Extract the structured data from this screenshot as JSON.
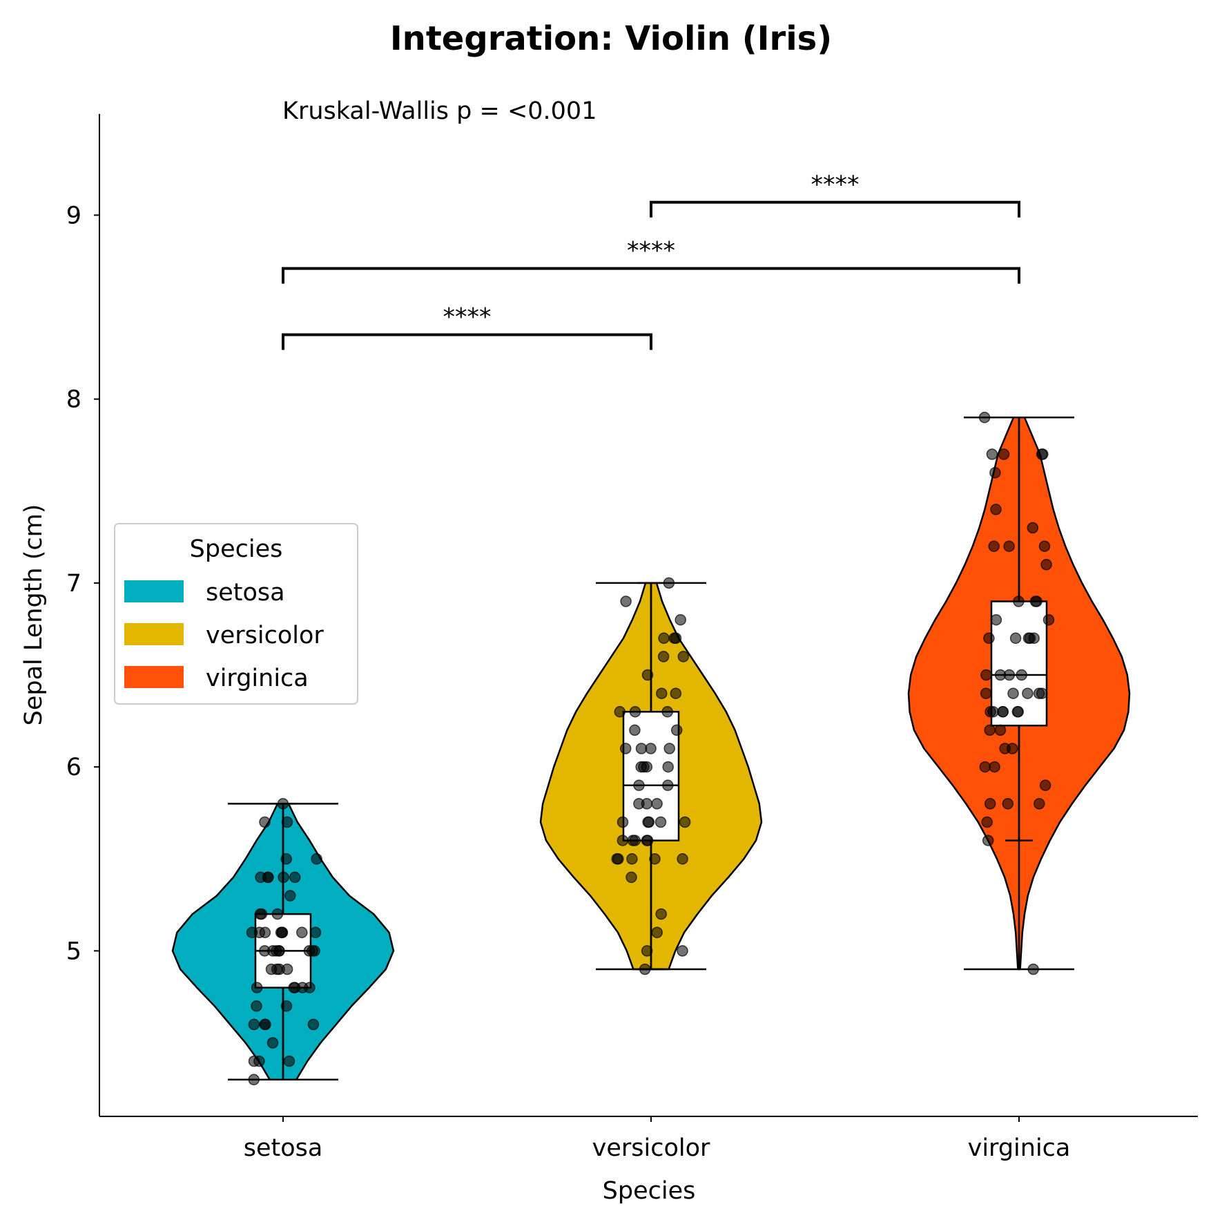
{
  "chart_data": {
    "type": "violin",
    "title": "Integration: Violin (Iris)",
    "xlabel": "Species",
    "ylabel": "Sepal Length (cm)",
    "categories": [
      "setosa",
      "versicolor",
      "virginica"
    ],
    "ylim": [
      4.1,
      9.55
    ],
    "yticks": [
      5,
      6,
      7,
      8,
      9
    ],
    "annotation": "Kruskal-Wallis p = <0.001",
    "legend": {
      "title": "Species",
      "placement": "center-left",
      "entries": [
        "setosa",
        "versicolor",
        "virginica"
      ]
    },
    "colors": {
      "setosa": "#00aebf",
      "versicolor": "#e3b600",
      "virginica": "#ff5208"
    },
    "series": [
      {
        "name": "setosa",
        "min": 4.3,
        "max": 5.8,
        "q1": 4.8,
        "median": 5.0,
        "q3": 5.2,
        "whisker_low": 4.3,
        "whisker_high": 5.8,
        "density": [
          [
            4.3,
            0.12
          ],
          [
            4.4,
            0.22
          ],
          [
            4.5,
            0.34
          ],
          [
            4.6,
            0.48
          ],
          [
            4.7,
            0.62
          ],
          [
            4.8,
            0.78
          ],
          [
            4.9,
            0.93
          ],
          [
            5.0,
            1.0
          ],
          [
            5.1,
            0.96
          ],
          [
            5.2,
            0.82
          ],
          [
            5.3,
            0.6
          ],
          [
            5.4,
            0.45
          ],
          [
            5.5,
            0.34
          ],
          [
            5.6,
            0.24
          ],
          [
            5.7,
            0.13
          ],
          [
            5.8,
            0.05
          ]
        ],
        "points": [
          5.1,
          4.9,
          4.7,
          4.6,
          5.0,
          5.4,
          4.6,
          5.0,
          4.4,
          4.9,
          5.4,
          4.8,
          4.8,
          4.3,
          5.8,
          5.7,
          5.4,
          5.1,
          5.7,
          5.1,
          5.4,
          5.1,
          4.6,
          5.1,
          4.8,
          5.0,
          5.0,
          5.2,
          5.2,
          4.7,
          4.8,
          5.4,
          5.2,
          5.5,
          4.9,
          5.0,
          5.5,
          4.9,
          4.4,
          5.1,
          5.0,
          4.5,
          4.4,
          5.0,
          5.1,
          4.8,
          5.1,
          4.6,
          5.3,
          5.0
        ]
      },
      {
        "name": "versicolor",
        "min": 4.9,
        "max": 7.0,
        "q1": 5.6,
        "median": 5.9,
        "q3": 6.3,
        "whisker_low": 4.9,
        "whisker_high": 7.0,
        "density": [
          [
            4.9,
            0.16
          ],
          [
            5.0,
            0.22
          ],
          [
            5.1,
            0.3
          ],
          [
            5.2,
            0.42
          ],
          [
            5.3,
            0.55
          ],
          [
            5.4,
            0.7
          ],
          [
            5.5,
            0.84
          ],
          [
            5.6,
            0.95
          ],
          [
            5.7,
            1.0
          ],
          [
            5.8,
            0.98
          ],
          [
            5.9,
            0.93
          ],
          [
            6.0,
            0.88
          ],
          [
            6.1,
            0.82
          ],
          [
            6.2,
            0.76
          ],
          [
            6.3,
            0.68
          ],
          [
            6.4,
            0.58
          ],
          [
            6.5,
            0.47
          ],
          [
            6.6,
            0.36
          ],
          [
            6.7,
            0.25
          ],
          [
            6.8,
            0.17
          ],
          [
            6.9,
            0.1
          ],
          [
            7.0,
            0.05
          ]
        ],
        "points": [
          7.0,
          6.4,
          6.9,
          5.5,
          6.5,
          5.7,
          6.3,
          4.9,
          6.6,
          5.2,
          5.0,
          5.9,
          6.0,
          6.1,
          5.6,
          6.7,
          5.6,
          5.8,
          6.2,
          5.6,
          5.9,
          6.1,
          6.3,
          6.1,
          6.4,
          6.6,
          6.8,
          6.7,
          6.0,
          5.7,
          5.5,
          5.5,
          5.8,
          6.0,
          5.4,
          6.0,
          6.7,
          6.3,
          5.6,
          5.5,
          5.5,
          6.1,
          5.8,
          5.0,
          5.6,
          5.7,
          5.7,
          6.2,
          5.1,
          5.7
        ]
      },
      {
        "name": "virginica",
        "min": 4.9,
        "max": 7.9,
        "q1": 6.225,
        "median": 6.5,
        "q3": 6.9,
        "whisker_low": 5.6,
        "whisker_high": 7.9,
        "density": [
          [
            4.9,
            0.01
          ],
          [
            5.0,
            0.02
          ],
          [
            5.1,
            0.03
          ],
          [
            5.2,
            0.05
          ],
          [
            5.3,
            0.08
          ],
          [
            5.4,
            0.13
          ],
          [
            5.5,
            0.2
          ],
          [
            5.6,
            0.28
          ],
          [
            5.7,
            0.37
          ],
          [
            5.8,
            0.48
          ],
          [
            5.9,
            0.6
          ],
          [
            6.0,
            0.73
          ],
          [
            6.1,
            0.86
          ],
          [
            6.2,
            0.95
          ],
          [
            6.3,
            0.99
          ],
          [
            6.4,
            1.0
          ],
          [
            6.5,
            0.98
          ],
          [
            6.6,
            0.93
          ],
          [
            6.7,
            0.85
          ],
          [
            6.8,
            0.76
          ],
          [
            6.9,
            0.66
          ],
          [
            7.0,
            0.57
          ],
          [
            7.1,
            0.49
          ],
          [
            7.2,
            0.42
          ],
          [
            7.3,
            0.36
          ],
          [
            7.4,
            0.31
          ],
          [
            7.5,
            0.27
          ],
          [
            7.6,
            0.23
          ],
          [
            7.7,
            0.19
          ],
          [
            7.8,
            0.12
          ],
          [
            7.9,
            0.05
          ]
        ],
        "points": [
          6.3,
          5.8,
          7.1,
          6.3,
          6.5,
          7.6,
          4.9,
          7.3,
          6.7,
          7.2,
          6.5,
          6.4,
          6.8,
          5.7,
          5.8,
          6.4,
          6.5,
          7.7,
          7.7,
          6.0,
          6.9,
          5.6,
          7.7,
          6.3,
          6.7,
          7.2,
          6.2,
          6.1,
          6.4,
          7.2,
          7.4,
          7.9,
          6.4,
          6.3,
          6.1,
          7.7,
          6.3,
          6.4,
          6.0,
          6.9,
          6.7,
          6.9,
          5.8,
          6.8,
          6.7,
          6.7,
          6.3,
          6.5,
          6.2,
          5.9
        ]
      }
    ],
    "comparisons": [
      {
        "from": "setosa",
        "to": "versicolor",
        "label": "****"
      },
      {
        "from": "setosa",
        "to": "virginica",
        "label": "****"
      },
      {
        "from": "versicolor",
        "to": "virginica",
        "label": "****"
      }
    ]
  }
}
